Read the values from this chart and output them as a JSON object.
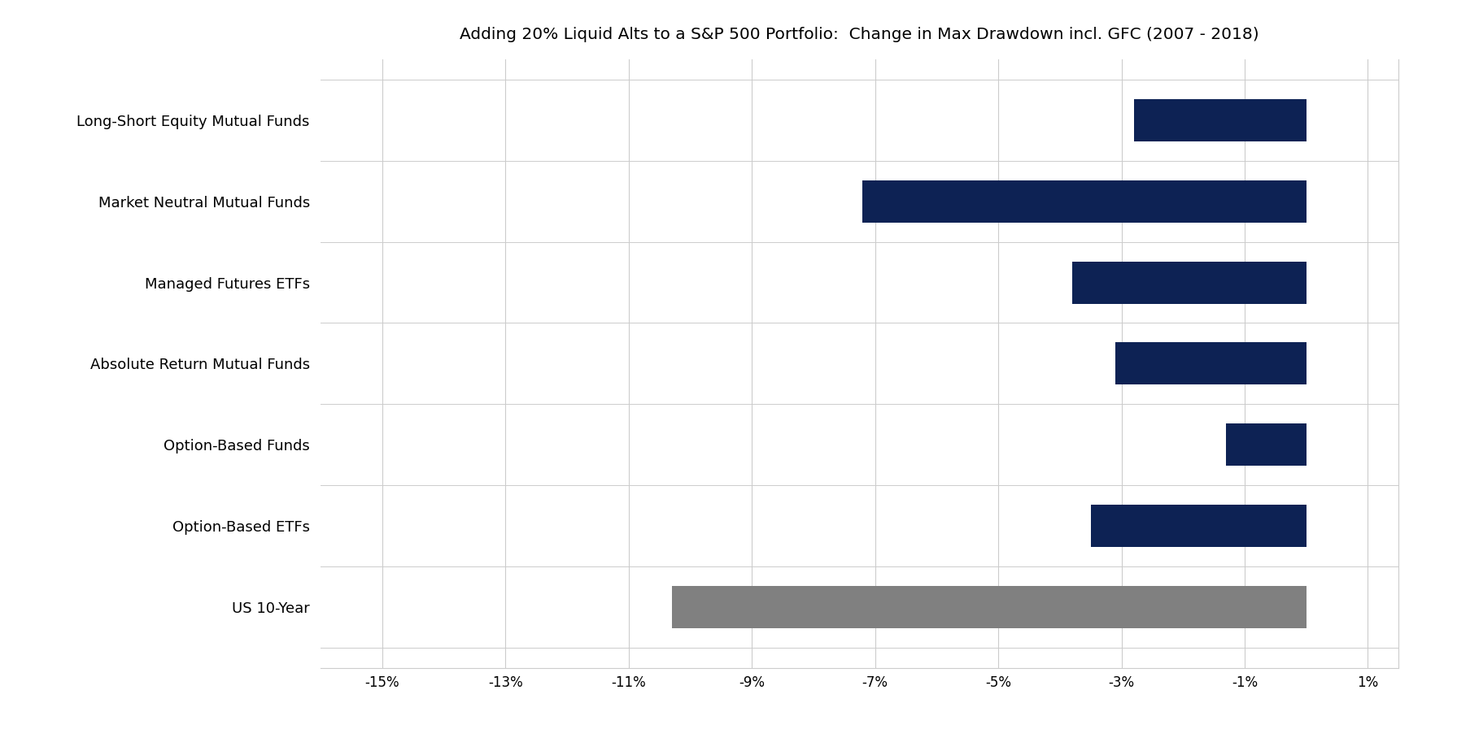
{
  "title": "Adding 20% Liquid Alts to a S&P 500 Portfolio:  Change in Max Drawdown incl. GFC (2007 - 2018)",
  "categories": [
    "Long-Short Equity Mutual Funds",
    "Market Neutral Mutual Funds",
    "Managed Futures ETFs",
    "Absolute Return Mutual Funds",
    "Option-Based Funds",
    "Option-Based ETFs",
    "US 10-Year"
  ],
  "values": [
    -2.8,
    -7.2,
    -3.8,
    -3.1,
    -1.3,
    -3.5,
    -10.3
  ],
  "bar_colors": [
    "#0d2254",
    "#0d2254",
    "#0d2254",
    "#0d2254",
    "#0d2254",
    "#0d2254",
    "#808080"
  ],
  "xlim": [
    -16,
    1.5
  ],
  "xticks": [
    -15,
    -13,
    -11,
    -9,
    -7,
    -5,
    -3,
    -1,
    1
  ],
  "xtick_labels": [
    "-15%",
    "-13%",
    "-11%",
    "-9%",
    "-7%",
    "-5%",
    "-3%",
    "-1%",
    "1%"
  ],
  "bar_height": 0.52,
  "title_fontsize": 14.5,
  "label_fontsize": 13,
  "tick_fontsize": 12,
  "background_color": "#ffffff",
  "grid_color": "#cccccc",
  "separator_color": "#cccccc"
}
